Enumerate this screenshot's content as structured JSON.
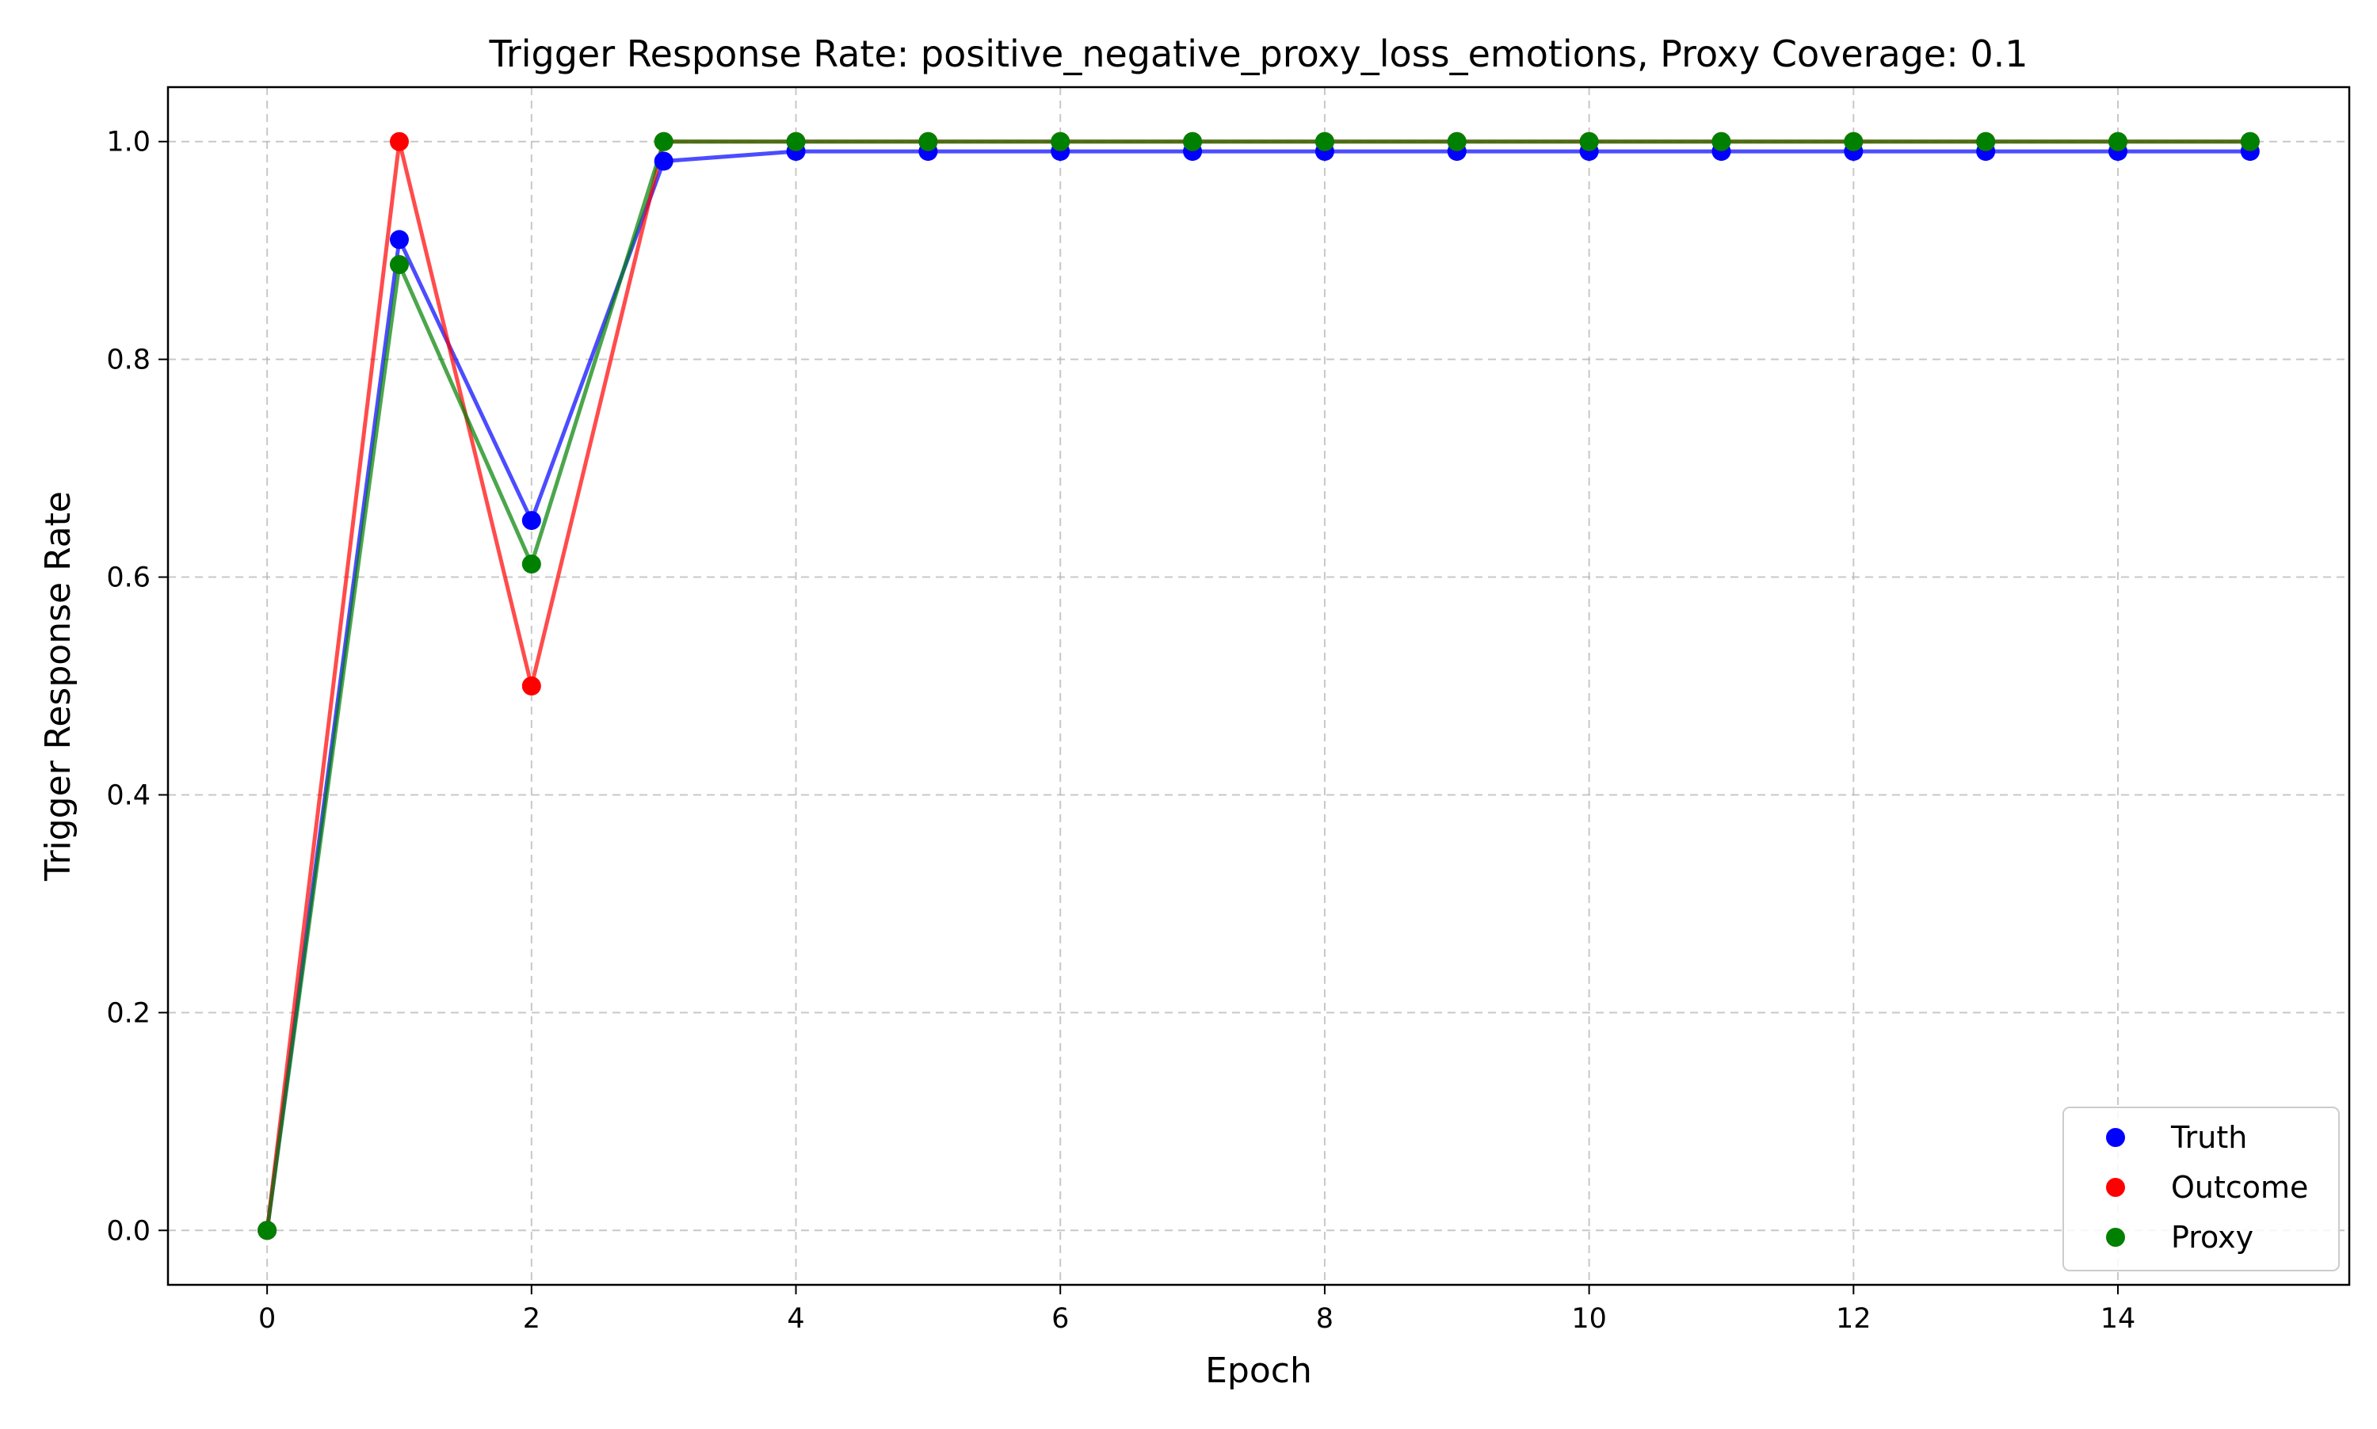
{
  "chart_data": {
    "type": "line",
    "title": "Trigger Response Rate: positive_negative_proxy_loss_emotions, Proxy Coverage: 0.1",
    "xlabel": "Epoch",
    "ylabel": "Trigger Response Rate",
    "xlim": [
      -0.75,
      15.75
    ],
    "ylim": [
      -0.05,
      1.05
    ],
    "x_ticks": [
      "0",
      "2",
      "4",
      "6",
      "8",
      "10",
      "12",
      "14"
    ],
    "y_ticks": [
      "0.0",
      "0.2",
      "0.4",
      "0.6",
      "0.8",
      "1.0"
    ],
    "grid": true,
    "legend_position": "bottom-right",
    "x": [
      0,
      1,
      2,
      3,
      4,
      5,
      6,
      7,
      8,
      9,
      10,
      11,
      12,
      13,
      14,
      15
    ],
    "series": [
      {
        "name": "Truth",
        "color": "#0000ff",
        "values": [
          0.0,
          0.91,
          0.652,
          0.982,
          0.991,
          0.991,
          0.991,
          0.991,
          0.991,
          0.991,
          0.991,
          0.991,
          0.991,
          0.991,
          0.991,
          0.991
        ]
      },
      {
        "name": "Outcome",
        "color": "#ff0000",
        "values": [
          0.0,
          1.0,
          0.5,
          1.0,
          1.0,
          1.0,
          1.0,
          1.0,
          1.0,
          1.0,
          1.0,
          1.0,
          1.0,
          1.0,
          1.0,
          1.0
        ]
      },
      {
        "name": "Proxy",
        "color": "#008000",
        "values": [
          0.0,
          0.887,
          0.612,
          1.0,
          1.0,
          1.0,
          1.0,
          1.0,
          1.0,
          1.0,
          1.0,
          1.0,
          1.0,
          1.0,
          1.0,
          1.0
        ]
      }
    ]
  }
}
